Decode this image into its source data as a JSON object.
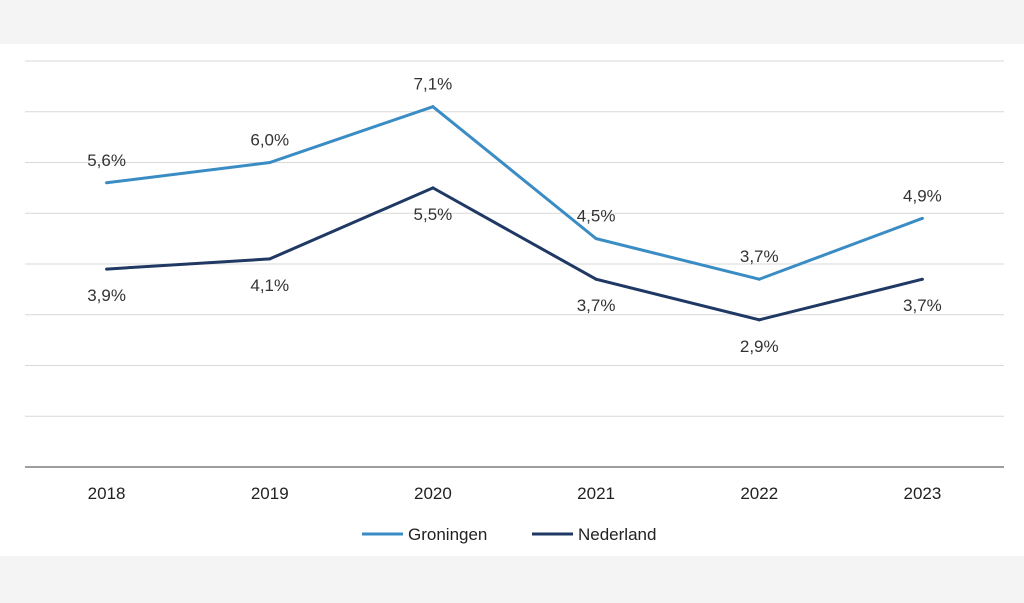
{
  "chart_data": {
    "type": "line",
    "title": "",
    "xlabel": "",
    "ylabel": "",
    "ylim": [
      0,
      8
    ],
    "grid": true,
    "categories": [
      "2018",
      "2019",
      "2020",
      "2021",
      "2022",
      "2023"
    ],
    "series": [
      {
        "name": "Groningen",
        "color": "#3a8cc4",
        "values": [
          5.6,
          6.0,
          7.1,
          4.5,
          3.7,
          4.9
        ],
        "labels": [
          "5,6%",
          "6,0%",
          "7,1%",
          "4,5%",
          "3,7%",
          "4,9%"
        ],
        "label_position": "above"
      },
      {
        "name": "Nederland",
        "color": "#1f3864",
        "values": [
          3.9,
          4.1,
          5.5,
          3.7,
          2.9,
          3.7
        ],
        "labels": [
          "3,9%",
          "4,1%",
          "5,5%",
          "3,7%",
          "2,9%",
          "3,7%"
        ],
        "label_position": "below"
      }
    ],
    "legend": {
      "placement": "bottom-center",
      "items": [
        "Groningen",
        "Nederland"
      ]
    },
    "colors": {
      "grid": "#d9d9d9",
      "axis": "#7f7f7f",
      "text": "#222222"
    }
  }
}
